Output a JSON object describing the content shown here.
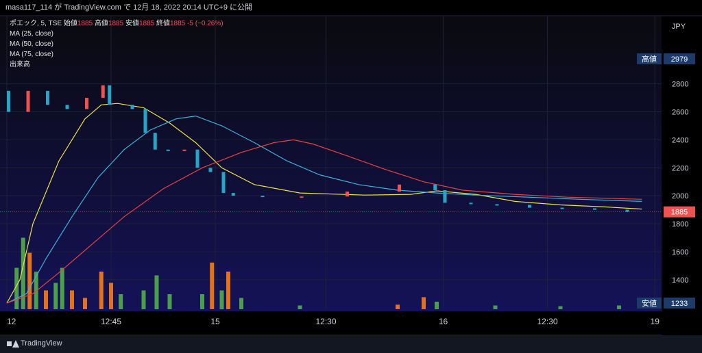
{
  "header": {
    "title": "masa117_114 が TradingView.com で 12月 18, 2022 20:14 UTC+9 に公開"
  },
  "legend": {
    "symbol": "ポエック, 5, TSE",
    "open_label": "始値",
    "open": "1885",
    "high_label": "高値",
    "high": "1885",
    "low_label": "安値",
    "low": "1885",
    "close_label": "終値",
    "close": "1885",
    "change": "-5 (−0.26%)",
    "ma1": "MA (25, close)",
    "ma2": "MA (50, close)",
    "ma3": "MA (75, close)",
    "volume": "出来高"
  },
  "footer": {
    "logo_text": "TradingView"
  },
  "colors": {
    "up": "#ef5350",
    "down": "#26a6c6",
    "vol_up": "#e3721c",
    "vol_down": "#4c9e4c",
    "ma25": "#f0e442",
    "ma50": "#3db4dc",
    "ma75": "#e8433f",
    "bg_top": "#0a0a0f",
    "bg_bottom": "#14145a"
  },
  "chart_data": {
    "type": "line",
    "currency": "JPY",
    "y_ticks": [
      1400,
      1600,
      1800,
      2000,
      2200,
      2400,
      2600,
      2800
    ],
    "ylim": [
      1233,
      2979
    ],
    "x_ticks": [
      "12",
      "12:45",
      "15",
      "12:30",
      "16",
      "12:30",
      "19"
    ],
    "high_label": "高値",
    "high_value": "2979",
    "low_label": "安値",
    "low_value": "1233",
    "last_price": "1885",
    "price_series": [
      {
        "x": 0.0,
        "y": 2750
      },
      {
        "x": 0.03,
        "y": 2600
      },
      {
        "x": 0.06,
        "y": 2750
      },
      {
        "x": 0.09,
        "y": 2650
      },
      {
        "x": 0.12,
        "y": 2620
      },
      {
        "x": 0.145,
        "y": 2700
      },
      {
        "x": 0.155,
        "y": 2790
      },
      {
        "x": 0.19,
        "y": 2650
      },
      {
        "x": 0.21,
        "y": 2620
      },
      {
        "x": 0.225,
        "y": 2450
      },
      {
        "x": 0.245,
        "y": 2330
      },
      {
        "x": 0.27,
        "y": 2320
      },
      {
        "x": 0.29,
        "y": 2330
      },
      {
        "x": 0.31,
        "y": 2200
      },
      {
        "x": 0.33,
        "y": 2170
      },
      {
        "x": 0.345,
        "y": 2020
      },
      {
        "x": 0.39,
        "y": 2000
      },
      {
        "x": 0.45,
        "y": 1995
      },
      {
        "x": 0.52,
        "y": 1995
      },
      {
        "x": 0.6,
        "y": 2030
      },
      {
        "x": 0.655,
        "y": 2080
      },
      {
        "x": 0.67,
        "y": 2040
      },
      {
        "x": 0.71,
        "y": 1950
      },
      {
        "x": 0.75,
        "y": 1940
      },
      {
        "x": 0.8,
        "y": 1935
      },
      {
        "x": 0.85,
        "y": 1915
      },
      {
        "x": 0.9,
        "y": 1910
      },
      {
        "x": 0.95,
        "y": 1900
      },
      {
        "x": 0.975,
        "y": 1885
      }
    ],
    "ma_series": [
      {
        "name": "MA (25, close)",
        "points": [
          [
            0.0,
            1233
          ],
          [
            0.02,
            1400
          ],
          [
            0.04,
            1800
          ],
          [
            0.08,
            2250
          ],
          [
            0.12,
            2550
          ],
          [
            0.145,
            2650
          ],
          [
            0.17,
            2660
          ],
          [
            0.21,
            2630
          ],
          [
            0.25,
            2520
          ],
          [
            0.29,
            2380
          ],
          [
            0.33,
            2200
          ],
          [
            0.38,
            2080
          ],
          [
            0.45,
            2020
          ],
          [
            0.55,
            2005
          ],
          [
            0.62,
            2010
          ],
          [
            0.66,
            2035
          ],
          [
            0.72,
            2010
          ],
          [
            0.78,
            1960
          ],
          [
            0.85,
            1935
          ],
          [
            0.92,
            1920
          ],
          [
            0.975,
            1905
          ]
        ]
      },
      {
        "name": "MA (50, close)",
        "points": [
          [
            0.0,
            1233
          ],
          [
            0.03,
            1300
          ],
          [
            0.06,
            1550
          ],
          [
            0.1,
            1850
          ],
          [
            0.14,
            2130
          ],
          [
            0.18,
            2330
          ],
          [
            0.22,
            2470
          ],
          [
            0.26,
            2550
          ],
          [
            0.29,
            2570
          ],
          [
            0.33,
            2500
          ],
          [
            0.38,
            2380
          ],
          [
            0.43,
            2250
          ],
          [
            0.48,
            2150
          ],
          [
            0.54,
            2080
          ],
          [
            0.6,
            2040
          ],
          [
            0.66,
            2020
          ],
          [
            0.72,
            2005
          ],
          [
            0.8,
            1990
          ],
          [
            0.88,
            1975
          ],
          [
            0.975,
            1960
          ]
        ]
      },
      {
        "name": "MA (75, close)",
        "points": [
          [
            0.0,
            1233
          ],
          [
            0.04,
            1300
          ],
          [
            0.08,
            1450
          ],
          [
            0.13,
            1650
          ],
          [
            0.18,
            1850
          ],
          [
            0.24,
            2050
          ],
          [
            0.3,
            2200
          ],
          [
            0.36,
            2310
          ],
          [
            0.41,
            2380
          ],
          [
            0.44,
            2400
          ],
          [
            0.47,
            2370
          ],
          [
            0.52,
            2290
          ],
          [
            0.58,
            2190
          ],
          [
            0.64,
            2100
          ],
          [
            0.7,
            2040
          ],
          [
            0.78,
            2010
          ],
          [
            0.86,
            1990
          ],
          [
            0.975,
            1975
          ]
        ]
      }
    ],
    "volume_bars": [
      {
        "x": 0.015,
        "v": 0.55,
        "up": false
      },
      {
        "x": 0.025,
        "v": 0.95,
        "up": false
      },
      {
        "x": 0.035,
        "v": 0.75,
        "up": true
      },
      {
        "x": 0.045,
        "v": 0.5,
        "up": false
      },
      {
        "x": 0.06,
        "v": 0.25,
        "up": true
      },
      {
        "x": 0.075,
        "v": 0.35,
        "up": false
      },
      {
        "x": 0.085,
        "v": 0.55,
        "up": false
      },
      {
        "x": 0.1,
        "v": 0.25,
        "up": true
      },
      {
        "x": 0.12,
        "v": 0.15,
        "up": true
      },
      {
        "x": 0.145,
        "v": 0.5,
        "up": true
      },
      {
        "x": 0.16,
        "v": 0.35,
        "up": true
      },
      {
        "x": 0.175,
        "v": 0.2,
        "up": false
      },
      {
        "x": 0.21,
        "v": 0.25,
        "up": false
      },
      {
        "x": 0.23,
        "v": 0.45,
        "up": false
      },
      {
        "x": 0.25,
        "v": 0.2,
        "up": false
      },
      {
        "x": 0.3,
        "v": 0.2,
        "up": false
      },
      {
        "x": 0.315,
        "v": 0.62,
        "up": true
      },
      {
        "x": 0.33,
        "v": 0.25,
        "up": false
      },
      {
        "x": 0.34,
        "v": 0.5,
        "up": true
      },
      {
        "x": 0.36,
        "v": 0.15,
        "up": false
      },
      {
        "x": 0.45,
        "v": 0.05,
        "up": false
      },
      {
        "x": 0.6,
        "v": 0.06,
        "up": true
      },
      {
        "x": 0.64,
        "v": 0.16,
        "up": true
      },
      {
        "x": 0.66,
        "v": 0.1,
        "up": false
      },
      {
        "x": 0.75,
        "v": 0.05,
        "up": false
      },
      {
        "x": 0.85,
        "v": 0.04,
        "up": false
      },
      {
        "x": 0.94,
        "v": 0.05,
        "up": false
      }
    ]
  }
}
